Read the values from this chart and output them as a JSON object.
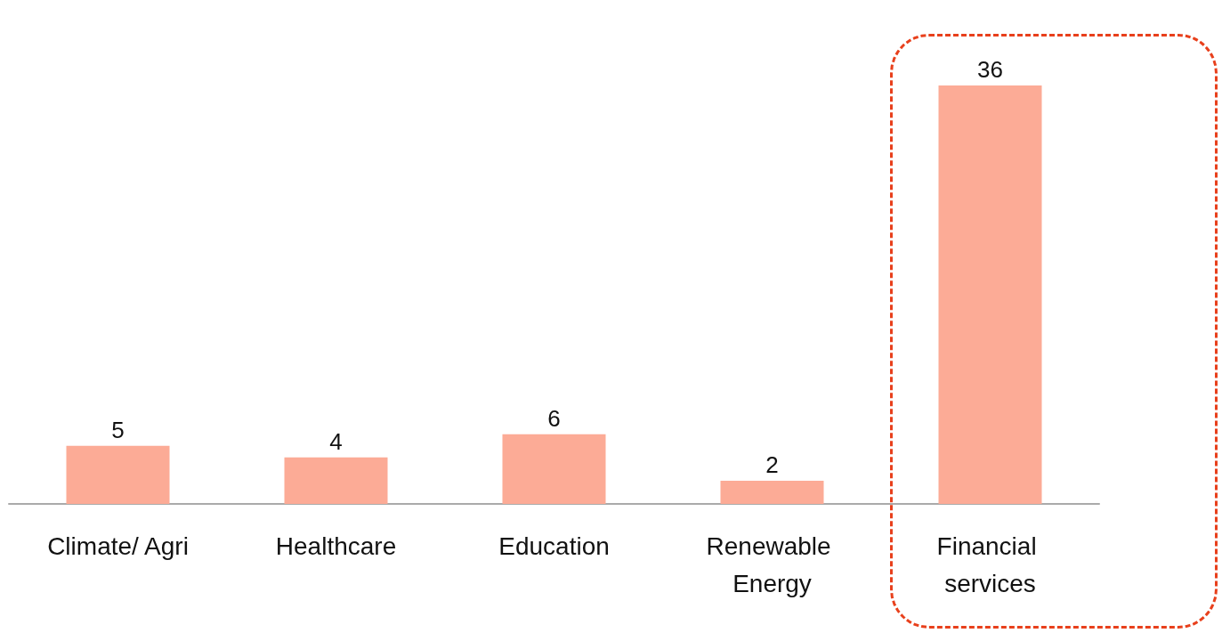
{
  "chart_data": {
    "type": "bar",
    "categories": [
      "Climate/ Agri",
      "Healthcare",
      "Education",
      "Renewable Energy",
      "Financial services"
    ],
    "values": [
      5,
      4,
      6,
      2,
      36
    ],
    "color": "#fcab96",
    "data_labels": true
  }
}
